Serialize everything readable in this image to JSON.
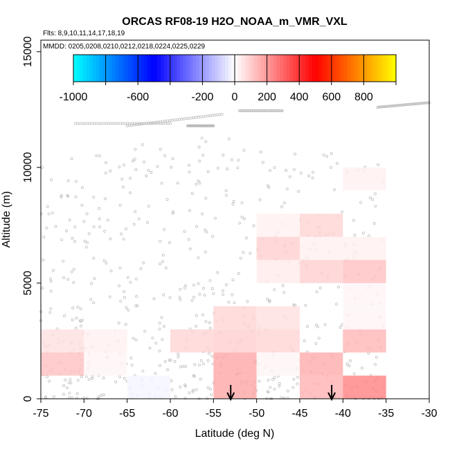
{
  "chart_data": {
    "type": "heatmap",
    "title": "ORCAS RF08-19 H2O_NOAA_m_VMR_VXL",
    "flights_text": "Flts: 8,9,10,11,14,17,18,19",
    "mmdd_text": "MMDD: 0205,0208,0210,0212,0218,0224,0225,0229",
    "xlabel": "Latitude (deg N)",
    "ylabel": "Altitude (m)",
    "xlim": [
      -75,
      -30
    ],
    "ylim": [
      0,
      15500
    ],
    "x_ticks": [
      -75,
      -70,
      -65,
      -60,
      -55,
      -50,
      -45,
      -40,
      -35,
      -30
    ],
    "y_ticks": [
      0,
      5000,
      10000,
      15000
    ],
    "colorbar": {
      "range": [
        -1000,
        1000
      ],
      "tick_values": [
        -1000,
        -600,
        -200,
        0,
        200,
        400,
        600,
        800
      ],
      "tick_labels": [
        "-1000",
        "-600",
        "-200",
        "0",
        "200",
        "400",
        "600",
        "800"
      ],
      "colors": [
        "#00ffff",
        "#0000ff",
        "#ffffff",
        "#ff0000",
        "#ffff00"
      ]
    },
    "cells": [
      {
        "lat": [
          -75,
          -70
        ],
        "alt": [
          2000,
          3000
        ],
        "value": 60
      },
      {
        "lat": [
          -70,
          -65
        ],
        "alt": [
          2000,
          3000
        ],
        "value": 30
      },
      {
        "lat": [
          -75,
          -70
        ],
        "alt": [
          1000,
          2000
        ],
        "value": 120
      },
      {
        "lat": [
          -70,
          -65
        ],
        "alt": [
          1000,
          2000
        ],
        "value": 20
      },
      {
        "lat": [
          -65,
          -60
        ],
        "alt": [
          0,
          1000
        ],
        "value": -20
      },
      {
        "lat": [
          -60,
          -55
        ],
        "alt": [
          2000,
          3000
        ],
        "value": 80
      },
      {
        "lat": [
          -55,
          -50
        ],
        "alt": [
          3000,
          4000
        ],
        "value": 80
      },
      {
        "lat": [
          -50,
          -45
        ],
        "alt": [
          3000,
          4000
        ],
        "value": 60
      },
      {
        "lat": [
          -55,
          -50
        ],
        "alt": [
          2000,
          3000
        ],
        "value": 90
      },
      {
        "lat": [
          -50,
          -45
        ],
        "alt": [
          2000,
          3000
        ],
        "value": 80
      },
      {
        "lat": [
          -55,
          -50
        ],
        "alt": [
          1000,
          2000
        ],
        "value": 170
      },
      {
        "lat": [
          -55,
          -50
        ],
        "alt": [
          0,
          1000
        ],
        "value": 170
      },
      {
        "lat": [
          -50,
          -45
        ],
        "alt": [
          1000,
          2000
        ],
        "value": 20
      },
      {
        "lat": [
          -45,
          -40
        ],
        "alt": [
          1000,
          2000
        ],
        "value": 160
      },
      {
        "lat": [
          -45,
          -40
        ],
        "alt": [
          0,
          1000
        ],
        "value": 150
      },
      {
        "lat": [
          -40,
          -35
        ],
        "alt": [
          0,
          1000
        ],
        "value": 240
      },
      {
        "lat": [
          -40,
          -35
        ],
        "alt": [
          2000,
          3000
        ],
        "value": 140
      },
      {
        "lat": [
          -40,
          -35
        ],
        "alt": [
          3000,
          4000
        ],
        "value": 20
      },
      {
        "lat": [
          -40,
          -35
        ],
        "alt": [
          4000,
          5000
        ],
        "value": 20
      },
      {
        "lat": [
          -40,
          -35
        ],
        "alt": [
          5000,
          6000
        ],
        "value": 120
      },
      {
        "lat": [
          -40,
          -35
        ],
        "alt": [
          6000,
          7000
        ],
        "value": 30
      },
      {
        "lat": [
          -40,
          -35
        ],
        "alt": [
          9000,
          10000
        ],
        "value": 30
      },
      {
        "lat": [
          -50,
          -45
        ],
        "alt": [
          7000,
          8000
        ],
        "value": 30
      },
      {
        "lat": [
          -45,
          -40
        ],
        "alt": [
          7000,
          8000
        ],
        "value": 80
      },
      {
        "lat": [
          -50,
          -45
        ],
        "alt": [
          6000,
          7000
        ],
        "value": 90
      },
      {
        "lat": [
          -45,
          -40
        ],
        "alt": [
          6000,
          7000
        ],
        "value": 30
      },
      {
        "lat": [
          -50,
          -45
        ],
        "alt": [
          5000,
          6000
        ],
        "value": 40
      },
      {
        "lat": [
          -45,
          -40
        ],
        "alt": [
          5000,
          6000
        ],
        "value": 90
      }
    ],
    "arrows_lat": [
      -53,
      -41.3
    ],
    "flight_tracks": [
      {
        "lat": [
          -71,
          -60
        ],
        "alt": [
          11900,
          11900
        ]
      },
      {
        "lat": [
          -65,
          -54
        ],
        "alt": [
          11800,
          12300
        ]
      },
      {
        "lat": [
          -58,
          -55
        ],
        "alt": [
          11800,
          11800
        ]
      },
      {
        "lat": [
          -52,
          -47
        ],
        "alt": [
          12450,
          12450
        ]
      },
      {
        "lat": [
          -36,
          -30
        ],
        "alt": [
          12600,
          12800
        ]
      }
    ],
    "grid": false
  }
}
